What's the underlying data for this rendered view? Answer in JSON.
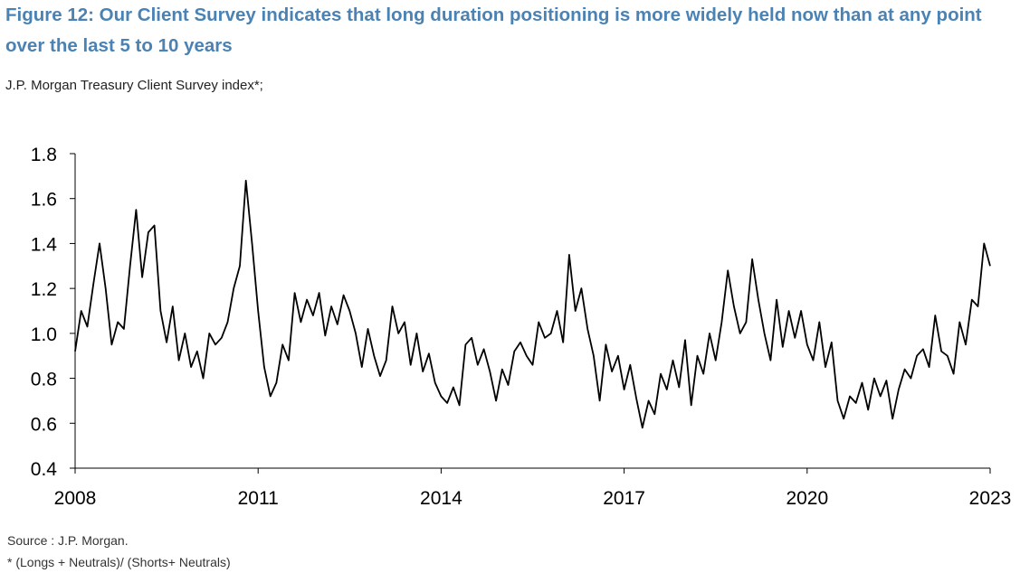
{
  "header": {
    "title": "Figure 12: Our Client Survey indicates that long duration positioning is more widely held now than at any point over the last 5 to 10 years",
    "subtitle": "J.P. Morgan Treasury Client Survey index*;"
  },
  "footer": {
    "source": "Source : J.P. Morgan.",
    "note": "* (Longs + Neutrals)/ (Shorts+ Neutrals)"
  },
  "chart_data": {
    "type": "line",
    "title": "",
    "xlabel": "",
    "ylabel": "",
    "xlim": [
      2008,
      2023
    ],
    "ylim": [
      0.4,
      1.8
    ],
    "yticks": [
      0.4,
      0.6,
      0.8,
      1.0,
      1.2,
      1.4,
      1.6,
      1.8
    ],
    "ytick_labels": [
      "0.4",
      "0.6",
      "0.8",
      "1.0",
      "1.2",
      "1.4",
      "1.6",
      "1.8"
    ],
    "xticks": [
      2008,
      2011,
      2014,
      2017,
      2020,
      2023
    ],
    "xtick_labels": [
      "2008",
      "2011",
      "2014",
      "2017",
      "2020",
      "2023"
    ],
    "grid": false,
    "series": [
      {
        "name": "J.P. Morgan Treasury Client Survey index",
        "color": "#000000",
        "x": [
          2008.0,
          2008.1,
          2008.2,
          2008.3,
          2008.4,
          2008.5,
          2008.6,
          2008.7,
          2008.8,
          2008.9,
          2009.0,
          2009.1,
          2009.2,
          2009.3,
          2009.4,
          2009.5,
          2009.6,
          2009.7,
          2009.8,
          2009.9,
          2010.0,
          2010.1,
          2010.2,
          2010.3,
          2010.4,
          2010.5,
          2010.6,
          2010.7,
          2010.8,
          2010.9,
          2011.0,
          2011.1,
          2011.2,
          2011.3,
          2011.4,
          2011.5,
          2011.6,
          2011.7,
          2011.8,
          2011.9,
          2012.0,
          2012.1,
          2012.2,
          2012.3,
          2012.4,
          2012.5,
          2012.6,
          2012.7,
          2012.8,
          2012.9,
          2013.0,
          2013.1,
          2013.2,
          2013.3,
          2013.4,
          2013.5,
          2013.6,
          2013.7,
          2013.8,
          2013.9,
          2014.0,
          2014.1,
          2014.2,
          2014.3,
          2014.4,
          2014.5,
          2014.6,
          2014.7,
          2014.8,
          2014.9,
          2015.0,
          2015.1,
          2015.2,
          2015.3,
          2015.4,
          2015.5,
          2015.6,
          2015.7,
          2015.8,
          2015.9,
          2016.0,
          2016.1,
          2016.2,
          2016.3,
          2016.4,
          2016.5,
          2016.6,
          2016.7,
          2016.8,
          2016.9,
          2017.0,
          2017.1,
          2017.2,
          2017.3,
          2017.4,
          2017.5,
          2017.6,
          2017.7,
          2017.8,
          2017.9,
          2018.0,
          2018.1,
          2018.2,
          2018.3,
          2018.4,
          2018.5,
          2018.6,
          2018.7,
          2018.8,
          2018.9,
          2019.0,
          2019.1,
          2019.2,
          2019.3,
          2019.4,
          2019.5,
          2019.6,
          2019.7,
          2019.8,
          2019.9,
          2020.0,
          2020.1,
          2020.2,
          2020.3,
          2020.4,
          2020.5,
          2020.6,
          2020.7,
          2020.8,
          2020.9,
          2021.0,
          2021.1,
          2021.2,
          2021.3,
          2021.4,
          2021.5,
          2021.6,
          2021.7,
          2021.8,
          2021.9,
          2022.0,
          2022.1,
          2022.2,
          2022.3,
          2022.4,
          2022.5,
          2022.6,
          2022.7,
          2022.8,
          2022.9,
          2023.0
        ],
        "values": [
          0.92,
          1.1,
          1.03,
          1.22,
          1.4,
          1.2,
          0.95,
          1.05,
          1.02,
          1.3,
          1.55,
          1.25,
          1.45,
          1.48,
          1.1,
          0.96,
          1.12,
          0.88,
          1.0,
          0.85,
          0.92,
          0.8,
          1.0,
          0.95,
          0.98,
          1.05,
          1.2,
          1.3,
          1.68,
          1.4,
          1.1,
          0.85,
          0.72,
          0.78,
          0.95,
          0.88,
          1.18,
          1.05,
          1.15,
          1.08,
          1.18,
          0.99,
          1.12,
          1.04,
          1.17,
          1.1,
          1.0,
          0.85,
          1.02,
          0.9,
          0.81,
          0.88,
          1.12,
          1.0,
          1.05,
          0.86,
          1.0,
          0.83,
          0.91,
          0.78,
          0.72,
          0.69,
          0.76,
          0.68,
          0.95,
          0.98,
          0.86,
          0.93,
          0.83,
          0.7,
          0.84,
          0.77,
          0.92,
          0.96,
          0.9,
          0.86,
          1.05,
          0.98,
          1.0,
          1.1,
          0.96,
          1.35,
          1.1,
          1.2,
          1.02,
          0.9,
          0.7,
          0.95,
          0.83,
          0.9,
          0.75,
          0.86,
          0.71,
          0.58,
          0.7,
          0.64,
          0.82,
          0.75,
          0.88,
          0.76,
          0.97,
          0.68,
          0.9,
          0.82,
          1.0,
          0.88,
          1.05,
          1.28,
          1.12,
          1.0,
          1.05,
          1.33,
          1.15,
          1.0,
          0.88,
          1.15,
          0.94,
          1.1,
          0.98,
          1.1,
          0.95,
          0.88,
          1.05,
          0.85,
          0.96,
          0.7,
          0.62,
          0.72,
          0.69,
          0.78,
          0.66,
          0.8,
          0.72,
          0.79,
          0.62,
          0.75,
          0.84,
          0.8,
          0.9,
          0.93,
          0.85,
          1.08,
          0.92,
          0.9,
          0.82,
          1.05,
          0.95,
          1.15,
          1.12,
          1.4,
          1.3
        ]
      }
    ]
  }
}
